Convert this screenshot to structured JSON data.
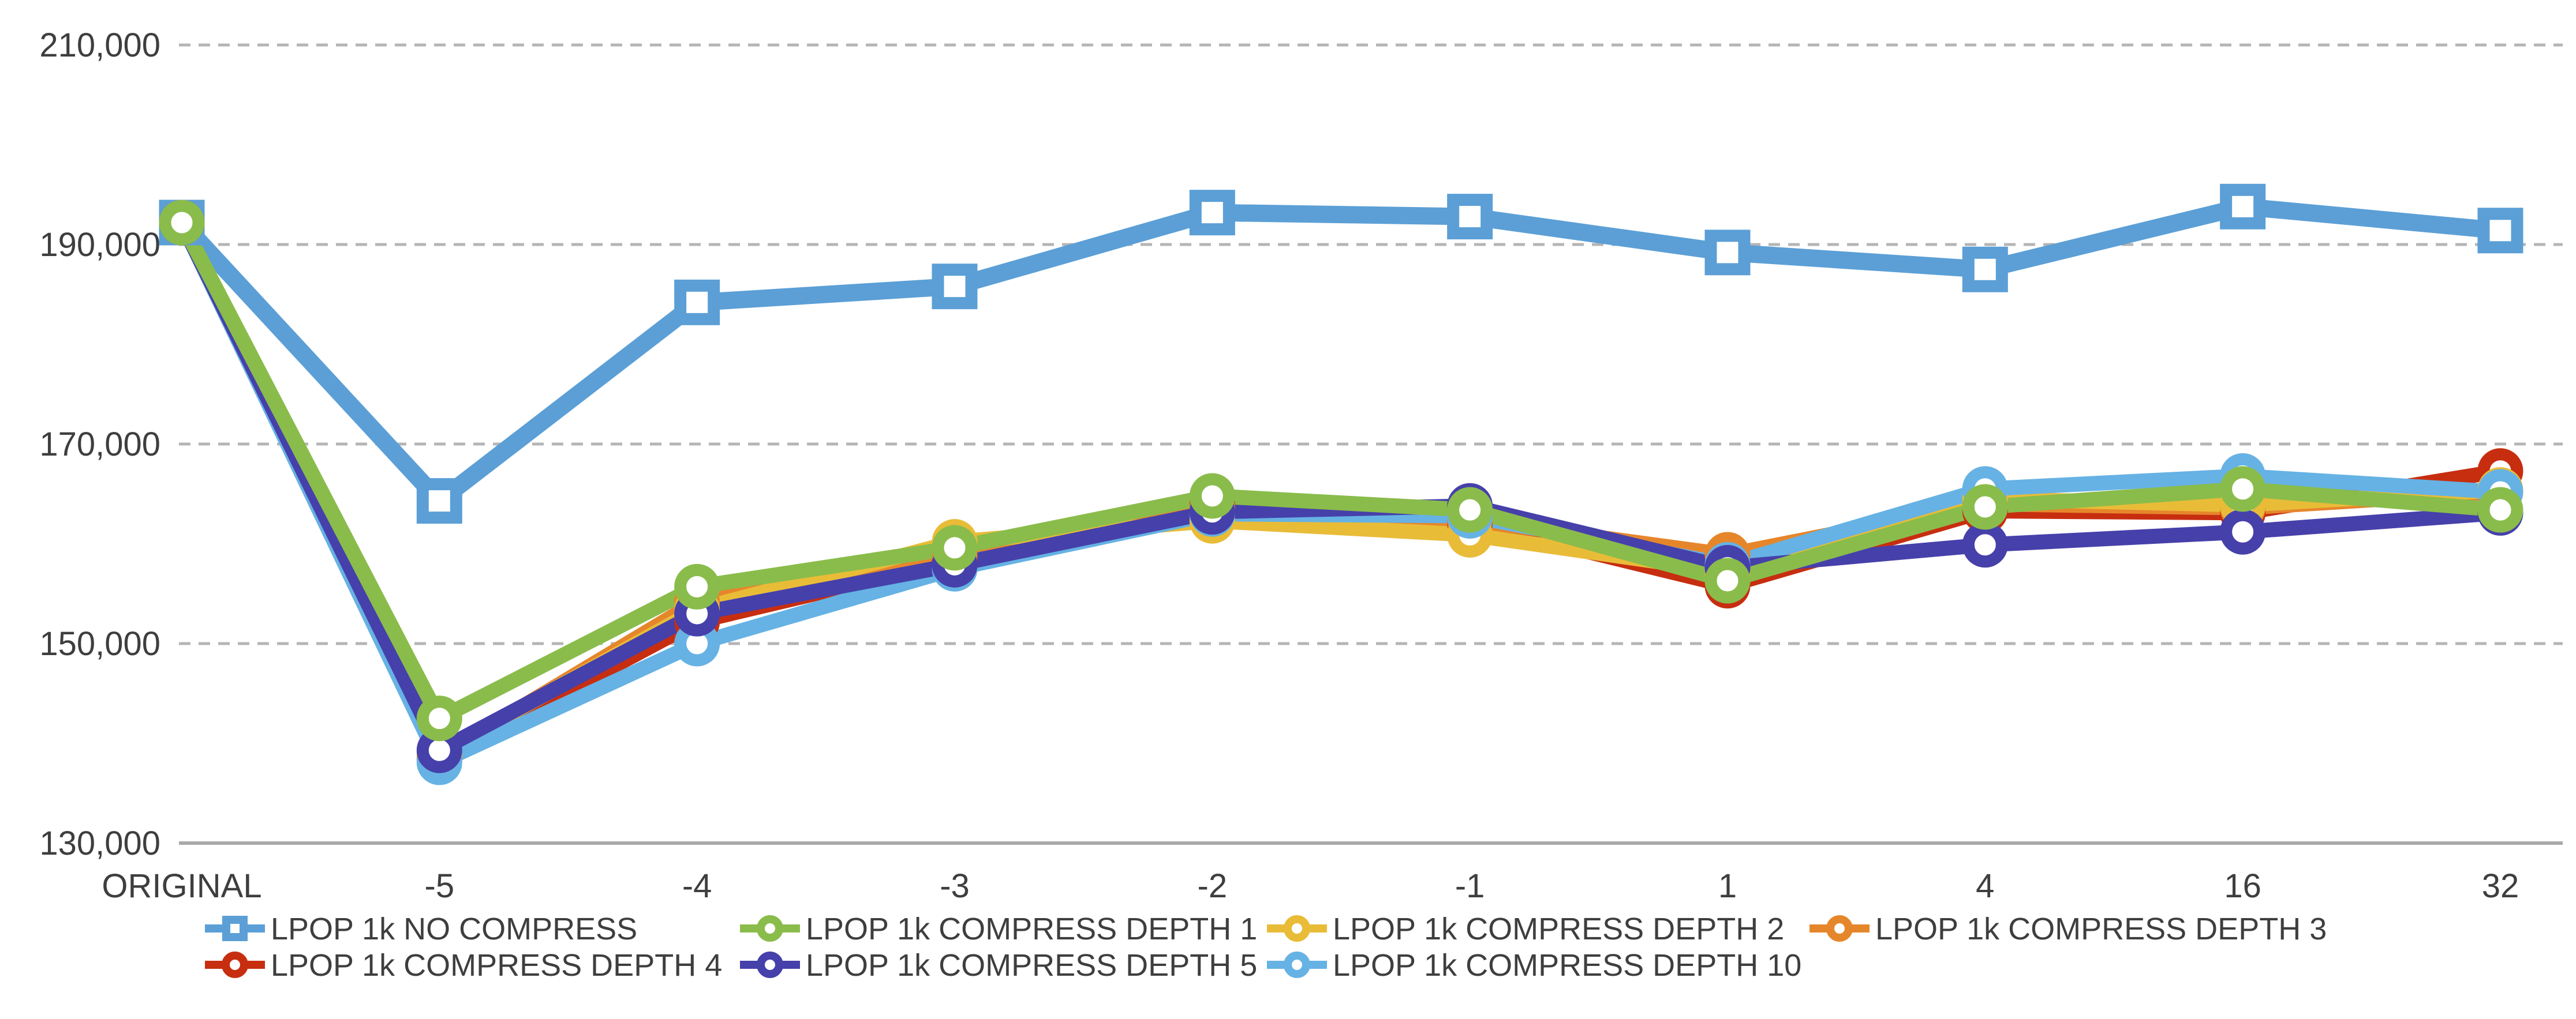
{
  "chart_data": {
    "type": "line",
    "categories": [
      "ORIGINAL",
      "-5",
      "-4",
      "-3",
      "-2",
      "-1",
      "1",
      "4",
      "16",
      "32"
    ],
    "y_axis": {
      "min": 130000,
      "max": 210000,
      "tick_step": 20000,
      "ticks": [
        {
          "value": 210000,
          "label": "210,000"
        },
        {
          "value": 190000,
          "label": "190,000"
        },
        {
          "value": 170000,
          "label": "170,000"
        },
        {
          "value": 150000,
          "label": "150,000"
        },
        {
          "value": 130000,
          "label": "130,000"
        }
      ],
      "gridline_style": "dashed",
      "baseline_style": "solid"
    },
    "series": [
      {
        "name": "LPOP 1k NO COMPRESS",
        "color": "#5B9FD6",
        "marker": "square",
        "values": [
          192200,
          164300,
          184200,
          185800,
          193200,
          192800,
          189200,
          187500,
          193800,
          191400
        ]
      },
      {
        "name": "LPOP 1k COMPRESS DEPTH 1",
        "color": "#8ABC4B",
        "marker": "circle",
        "values": [
          192200,
          142500,
          155700,
          159600,
          164800,
          163400,
          156300,
          163700,
          165500,
          163400
        ]
      },
      {
        "name": "LPOP 1k COMPRESS DEPTH 2",
        "color": "#E9BC38",
        "marker": "circle",
        "values": [
          192200,
          139000,
          153400,
          160200,
          162300,
          160900,
          157200,
          164500,
          163900,
          165400
        ]
      },
      {
        "name": "LPOP 1k COMPRESS DEPTH 3",
        "color": "#E6862B",
        "marker": "circle",
        "values": [
          192200,
          138700,
          154200,
          158800,
          163600,
          162400,
          158900,
          164000,
          163600,
          165200
        ]
      },
      {
        "name": "LPOP 1k COMPRESS DEPTH 4",
        "color": "#C72E10",
        "marker": "circle",
        "values": [
          192200,
          138400,
          152200,
          158300,
          163900,
          162100,
          155800,
          163300,
          163100,
          167300
        ]
      },
      {
        "name": "LPOP 1k COMPRESS DEPTH 5",
        "color": "#4640AA",
        "marker": "circle",
        "values": [
          192200,
          139300,
          153000,
          157900,
          163200,
          163800,
          157600,
          159900,
          161200,
          163100
        ]
      },
      {
        "name": "LPOP 1k COMPRESS DEPTH 10",
        "color": "#66B2E4",
        "marker": "circle",
        "values": [
          192200,
          138100,
          150000,
          157500,
          163000,
          162800,
          157900,
          165500,
          166800,
          165200
        ]
      }
    ],
    "legend": {
      "rows": [
        [
          0,
          1,
          2,
          3
        ],
        [
          4,
          5,
          6
        ]
      ],
      "position": "bottom"
    },
    "grid_color": "#B5B5B5",
    "axis_color": "#A9A9A9",
    "label_color": "#3E3E3E",
    "title": "",
    "xlabel": "",
    "ylabel": ""
  }
}
